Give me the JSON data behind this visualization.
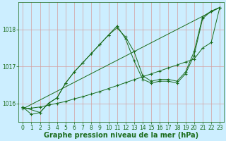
{
  "bg_color": "#cceeff",
  "grid_color_h": "#d4a0a0",
  "grid_color_v": "#c8d8c8",
  "line_color": "#1a6b1a",
  "xlabel": "Graphe pression niveau de la mer (hPa)",
  "ylim": [
    1015.5,
    1018.75
  ],
  "xlim": [
    -0.5,
    23.5
  ],
  "yticks": [
    1016,
    1017,
    1018
  ],
  "xticks": [
    0,
    1,
    2,
    3,
    4,
    5,
    6,
    7,
    8,
    9,
    10,
    11,
    12,
    13,
    14,
    15,
    16,
    17,
    18,
    19,
    20,
    21,
    22,
    23
  ],
  "series": [
    {
      "x": [
        0,
        1,
        2,
        3,
        4,
        5,
        6,
        7,
        8,
        9,
        10,
        11,
        12,
        13,
        14,
        15,
        16,
        17,
        18,
        19,
        20,
        21,
        22,
        23
      ],
      "y": [
        1015.9,
        1015.7,
        1015.75,
        1016.0,
        1016.15,
        1016.55,
        1016.85,
        1017.1,
        1017.35,
        1017.6,
        1017.85,
        1018.05,
        1017.8,
        1017.4,
        1016.75,
        1016.6,
        1016.65,
        1016.65,
        1016.6,
        1016.85,
        1017.4,
        1018.35,
        1018.5,
        1018.6
      ]
    },
    {
      "x": [
        0,
        2,
        3,
        4,
        5,
        6,
        7,
        8,
        9,
        10,
        11,
        12,
        13,
        14,
        15,
        16,
        17,
        18,
        19,
        20,
        21,
        22,
        23
      ],
      "y": [
        1015.9,
        1015.75,
        1016.0,
        1016.15,
        1016.55,
        1016.85,
        1017.1,
        1017.35,
        1017.6,
        1017.85,
        1018.1,
        1017.75,
        1017.15,
        1016.65,
        1016.55,
        1016.6,
        1016.6,
        1016.55,
        1016.8,
        1017.3,
        1018.3,
        1018.5,
        1018.6
      ]
    },
    {
      "x": [
        0,
        1,
        2,
        3,
        4,
        5,
        6,
        7,
        8,
        9,
        10,
        11,
        12,
        13,
        14,
        15,
        16,
        17,
        18,
        19,
        20,
        21,
        22,
        23
      ],
      "y": [
        1015.85,
        1015.87,
        1015.9,
        1015.95,
        1016.0,
        1016.05,
        1016.12,
        1016.18,
        1016.25,
        1016.32,
        1016.4,
        1016.48,
        1016.56,
        1016.64,
        1016.72,
        1016.8,
        1016.88,
        1016.96,
        1017.04,
        1017.12,
        1017.2,
        1017.5,
        1017.65,
        1018.6
      ]
    },
    {
      "x": [
        0,
        23
      ],
      "y": [
        1015.85,
        1018.6
      ]
    }
  ],
  "tick_fontsize": 5.5,
  "xlabel_fontsize": 7,
  "ytick_fontsize": 5.5
}
